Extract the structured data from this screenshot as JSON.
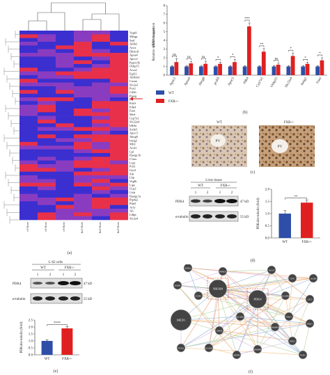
{
  "colors": {
    "wt": "#2e4ea8",
    "ko": "#e02020",
    "heat_low": "#3b2fd0",
    "heat_mid": "#8a3cc0",
    "heat_high": "#e8304a",
    "net_node": "#444444"
  },
  "panel_a": {
    "letter": "(a)",
    "samples": [
      "c1-liver",
      "c2-liver",
      "c3-liver",
      "ko1-liver",
      "ko2-liver",
      "ko3-liver"
    ],
    "genes": [
      "Vegfd",
      "Mfsqp",
      "Saal",
      "Aldh2",
      "Acox",
      "Dhdcd1",
      "Apoa4",
      "Apoc2",
      "Ppp1r3b",
      "Osbp15",
      "Acss2",
      "Fgf21",
      "Aldh3a1",
      "Cacna",
      "Slc2a3",
      "Pon1",
      "Cd36",
      "Pparg",
      "C4",
      "Pck9",
      "Pdk4",
      "Fasn",
      "Mvd",
      "Cyp7a1",
      "Slc22a4",
      "Idh3a",
      "Srebf1",
      "Apoc3",
      "Abcg8",
      "Insig2",
      "Mlxl",
      "Acsl1",
      "Lpl",
      "Ppargc1b",
      "C1ars",
      "Lepr",
      "Pck1",
      "Gys2",
      "Sds",
      "Lbp",
      "Vegfb",
      "Lipe",
      "Ucp2",
      "Cish",
      "Ppargc1a",
      "Ptp4a2",
      "Plin5",
      "Acly",
      "Alc",
      "Ldlpc",
      "Slc2a4"
    ],
    "arrow_gene": "Pdk4"
  },
  "panel_b": {
    "letter": "(b)",
    "chart_data": {
      "type": "bar",
      "ylabel": "Relative mRNA expression\n(fold change)",
      "ylim": [
        0,
        8
      ],
      "yticks": [
        0,
        1,
        2,
        3,
        4,
        5,
        6,
        7,
        8
      ],
      "categories": [
        "Apoc2",
        "Apoa4",
        "Abcg8",
        "pcsk9",
        "Apoc3",
        "Pdk4",
        "Cyp7a1",
        "Osbp15",
        "Slc22a4",
        "Insig2",
        "Fasn"
      ],
      "series": [
        {
          "name": "WT",
          "values": [
            1,
            1,
            1,
            1,
            1,
            1,
            1,
            1,
            1,
            1,
            1
          ],
          "errors": [
            0.1,
            0.1,
            0.1,
            0.1,
            0.1,
            0.1,
            0.1,
            0.1,
            0.1,
            0.1,
            0.1
          ]
        },
        {
          "name": "FXR-/-",
          "values": [
            1.5,
            1.35,
            1.3,
            1.3,
            1.5,
            5.6,
            2.7,
            1.2,
            2.2,
            1.3,
            1.7
          ],
          "errors": [
            0.4,
            0.25,
            0.3,
            0.2,
            0.3,
            0.4,
            0.35,
            0.2,
            0.35,
            0.2,
            0.3
          ]
        }
      ],
      "significance": [
        "ns",
        "ns",
        "ns",
        "*",
        "*",
        "***",
        "**",
        "ns",
        "*",
        "*",
        "*"
      ]
    }
  },
  "panel_c": {
    "letter": "(c)",
    "left_title": "WT",
    "right_title": "FXR-/-",
    "marker": "PV"
  },
  "panel_d": {
    "letter": "(d)",
    "blot_title": "Liver tissue",
    "group_wt": "WT",
    "group_ko": "FXR-/-",
    "lanes": [
      "1",
      "2",
      "1",
      "2"
    ],
    "rows": [
      {
        "name": "PDK4",
        "size": "47 kD"
      },
      {
        "name": "α-tubulin",
        "size": "55 kD"
      }
    ],
    "chart_data": {
      "type": "bar",
      "categories": [
        "WT",
        "FXR-/-"
      ],
      "values": [
        1.0,
        1.45
      ],
      "errors": [
        0.12,
        0.1
      ],
      "ylabel": "PDK4/α-tubulin (fold)",
      "ylim": [
        0,
        2.0
      ],
      "yticks": [
        "0.0",
        "0.5",
        "1.0",
        "1.5",
        "2.0"
      ],
      "significance": "**"
    }
  },
  "panel_e": {
    "letter": "(e)",
    "blot_title": "L-02 cells",
    "group_wt": "WT",
    "group_ko": "FXR-/-",
    "lanes": [
      "1",
      "2",
      "1",
      "2"
    ],
    "rows": [
      {
        "name": "PDK4",
        "size": "47 kD"
      },
      {
        "name": "α-tubulin",
        "size": "55 kD"
      }
    ],
    "chart_data": {
      "type": "bar",
      "categories": [
        "WT",
        "FXR-/-"
      ],
      "values": [
        1.0,
        1.9
      ],
      "errors": [
        0.08,
        0.12
      ],
      "ylabel": "PDK4/α-tubulin (fold)",
      "ylim": [
        0,
        2.5
      ],
      "yticks": [
        "0.0",
        "0.5",
        "1.0",
        "1.5",
        "2.0",
        "2.5"
      ],
      "significance": "****"
    }
  },
  "panel_f": {
    "letter": "(f)",
    "nodes": [
      "NR1H4",
      "PDK4",
      "MED1",
      "RXRB",
      "RXRA",
      "PPARA",
      "NCOA",
      "ACOT",
      "CPT1",
      "CPT2",
      "PDK1",
      "PDK2",
      "PDK3",
      "SREBF",
      "HADHA",
      "HADHB",
      "ALDH",
      "ACADM",
      "ACADL",
      "ACADS",
      "ECHS",
      "GPAM",
      "PCK1"
    ]
  }
}
